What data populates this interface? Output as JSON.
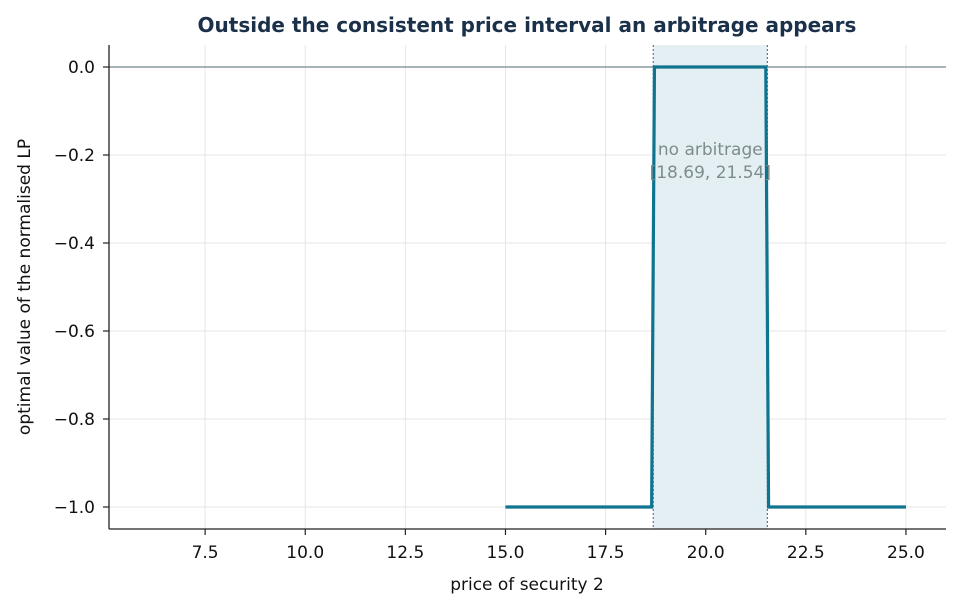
{
  "chart_data": {
    "type": "line",
    "title": "Outside the consistent price interval an arbitrage appears",
    "xlabel": "price of security 2",
    "ylabel": "optimal value of the normalised LP",
    "xlim": [
      5.1,
      26.0
    ],
    "ylim": [
      -1.05,
      0.05
    ],
    "xticks": [
      7.5,
      10.0,
      12.5,
      15.0,
      17.5,
      20.0,
      22.5,
      25.0
    ],
    "xtick_labels": [
      "7.5",
      "10.0",
      "12.5",
      "15.0",
      "17.5",
      "20.0",
      "22.5",
      "25.0"
    ],
    "yticks": [
      0.0,
      -0.2,
      -0.4,
      -0.6,
      -0.8,
      -1.0
    ],
    "ytick_labels": [
      "0.0",
      "−0.2",
      "−0.4",
      "−0.6",
      "−0.8",
      "−1.0"
    ],
    "grid": true,
    "reference_line_y": 0.0,
    "series": [
      {
        "x": [
          15.0,
          18.65,
          18.72,
          21.5,
          21.57,
          25.0
        ],
        "y": [
          -1.0,
          -1.0,
          0.0,
          0.0,
          -1.0,
          -1.0
        ],
        "color": "#0e7490"
      }
    ],
    "band": {
      "x": [
        18.69,
        21.54
      ],
      "label_lines": [
        "no arbitrage",
        "[18.69, 21.54]"
      ],
      "fill": "#e3eff2",
      "edge_color": "#5d7a8a"
    },
    "colors": {
      "line": "#0e7490",
      "title": "#1b3049",
      "grid": "#e6e6e6",
      "reference": "#8a9a9e",
      "annotation": "#7f8c8d"
    }
  }
}
